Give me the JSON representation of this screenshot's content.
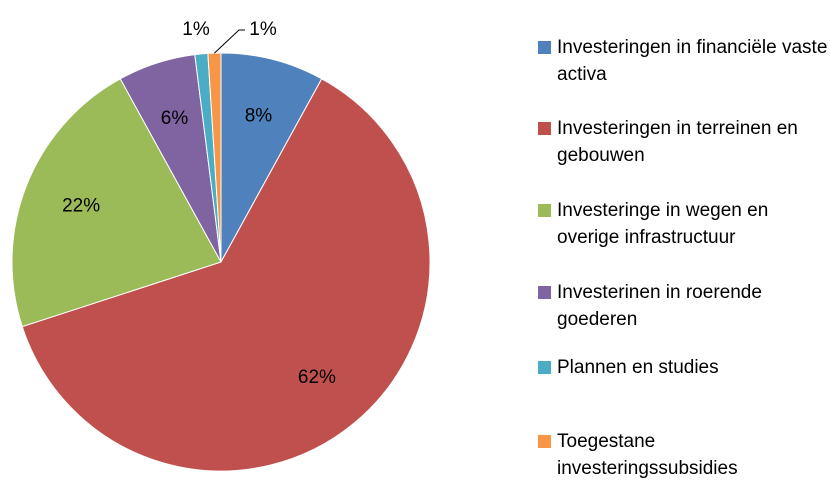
{
  "chart_data": {
    "type": "pie",
    "categories": [
      "Investeringen in financiële vaste activa",
      "Investeringen in terreinen en gebouwen",
      "Investeringe in wegen en overige infrastructuur",
      "Investerinen in roerende goederen",
      "Plannen en studies",
      "Toegestane investeringssubsidies"
    ],
    "values": [
      8,
      62,
      22,
      6,
      1,
      1
    ],
    "value_labels": [
      "8%",
      "62%",
      "22%",
      "6%",
      "1%",
      "1%"
    ],
    "colors": [
      "#4f81bd",
      "#c0504d",
      "#9bbb59",
      "#8064a2",
      "#4bacc6",
      "#f79646"
    ],
    "legend": "right"
  }
}
